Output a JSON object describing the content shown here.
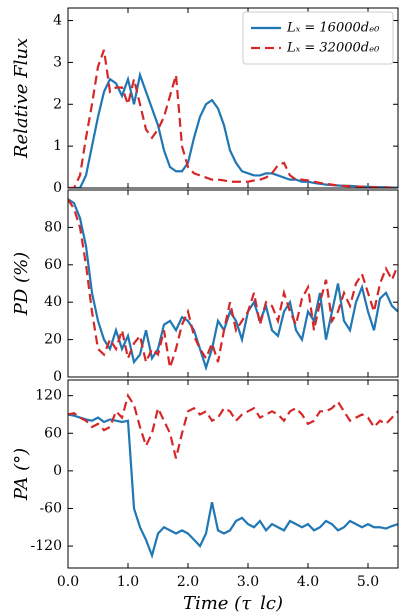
{
  "chart_data": [
    {
      "type": "line",
      "ylabel": "Relative Flux",
      "xlim": [
        0,
        5.5
      ],
      "xticks": [
        0,
        1,
        2,
        3,
        4,
        5
      ],
      "ylim": [
        0,
        4.3
      ],
      "yticks": [
        0,
        1,
        2,
        3,
        4
      ],
      "legend": "upper right",
      "x": [
        0,
        0.1,
        0.2,
        0.3,
        0.4,
        0.5,
        0.6,
        0.7,
        0.8,
        0.9,
        1.0,
        1.1,
        1.2,
        1.3,
        1.4,
        1.5,
        1.6,
        1.7,
        1.8,
        1.9,
        2.0,
        2.1,
        2.2,
        2.3,
        2.4,
        2.5,
        2.6,
        2.7,
        2.8,
        2.9,
        3.0,
        3.1,
        3.2,
        3.3,
        3.4,
        3.5,
        3.6,
        3.7,
        3.8,
        3.9,
        4.0,
        4.1,
        4.2,
        4.3,
        4.4,
        4.5,
        4.6,
        4.7,
        4.8,
        4.9,
        5.0,
        5.1,
        5.2,
        5.3,
        5.4,
        5.5
      ],
      "series": [
        {
          "name": "Lₓ = 16000dₑ₀",
          "color": "#1f77b4",
          "linestyle": "solid",
          "values": [
            0,
            0,
            0,
            0.3,
            1.0,
            1.7,
            2.3,
            2.6,
            2.5,
            2.2,
            2.6,
            2.0,
            2.7,
            2.3,
            1.9,
            1.5,
            0.9,
            0.5,
            0.4,
            0.4,
            0.6,
            1.2,
            1.7,
            2.0,
            2.1,
            1.9,
            1.5,
            0.9,
            0.6,
            0.4,
            0.35,
            0.3,
            0.3,
            0.35,
            0.35,
            0.3,
            0.25,
            0.2,
            0.2,
            0.15,
            0.15,
            0.12,
            0.1,
            0.08,
            0.07,
            0.06,
            0.05,
            0.05,
            0.04,
            0.03,
            0.03,
            0.02,
            0.02,
            0.02,
            0.01,
            0.01
          ]
        },
        {
          "name": "Lₓ = 32000dₑ₀",
          "color": "#d62728",
          "linestyle": "dashed",
          "values": [
            0,
            0,
            0.3,
            1.2,
            2.0,
            2.9,
            3.3,
            2.3,
            2.4,
            2.4,
            2.0,
            2.6,
            2.0,
            1.4,
            1.2,
            1.4,
            1.7,
            2.2,
            2.7,
            1.0,
            0.5,
            0.35,
            0.3,
            0.25,
            0.2,
            0.2,
            0.18,
            0.15,
            0.15,
            0.15,
            0.15,
            0.18,
            0.2,
            0.25,
            0.35,
            0.55,
            0.6,
            0.3,
            0.2,
            0.2,
            0.18,
            0.15,
            0.12,
            0.1,
            0.08,
            0.06,
            0.05,
            0.04,
            0.03,
            0.03,
            0.02,
            0.02,
            0.01,
            0.01,
            0.01,
            0.01
          ]
        }
      ]
    },
    {
      "type": "line",
      "ylabel": "PD (%)",
      "xlim": [
        0,
        5.5
      ],
      "xticks": [
        0,
        1,
        2,
        3,
        4,
        5
      ],
      "ylim": [
        0,
        100
      ],
      "yticks": [
        0,
        20,
        40,
        60,
        80
      ],
      "x": [
        0,
        0.1,
        0.2,
        0.3,
        0.4,
        0.5,
        0.6,
        0.7,
        0.8,
        0.9,
        1.0,
        1.1,
        1.2,
        1.3,
        1.4,
        1.5,
        1.6,
        1.7,
        1.8,
        1.9,
        2.0,
        2.1,
        2.2,
        2.3,
        2.4,
        2.5,
        2.6,
        2.7,
        2.8,
        2.9,
        3.0,
        3.1,
        3.2,
        3.3,
        3.4,
        3.5,
        3.6,
        3.7,
        3.8,
        3.9,
        4.0,
        4.1,
        4.2,
        4.3,
        4.4,
        4.5,
        4.6,
        4.7,
        4.8,
        4.9,
        5.0,
        5.1,
        5.2,
        5.3,
        5.4,
        5.5
      ],
      "series": [
        {
          "color": "#1f77b4",
          "linestyle": "solid",
          "values": [
            95,
            93,
            85,
            70,
            45,
            30,
            20,
            15,
            25,
            15,
            22,
            8,
            12,
            25,
            10,
            15,
            28,
            30,
            25,
            32,
            30,
            25,
            15,
            5,
            15,
            30,
            25,
            35,
            30,
            20,
            35,
            40,
            30,
            38,
            25,
            22,
            35,
            40,
            25,
            20,
            35,
            30,
            45,
            20,
            35,
            50,
            30,
            25,
            40,
            48,
            35,
            25,
            42,
            45,
            38,
            35
          ]
        },
        {
          "color": "#d62728",
          "linestyle": "dashed",
          "values": [
            95,
            90,
            80,
            60,
            35,
            15,
            12,
            20,
            15,
            25,
            10,
            18,
            22,
            8,
            15,
            12,
            25,
            5,
            15,
            28,
            35,
            22,
            15,
            10,
            18,
            8,
            25,
            40,
            25,
            30,
            35,
            45,
            28,
            40,
            38,
            30,
            45,
            35,
            28,
            42,
            48,
            25,
            40,
            52,
            30,
            35,
            45,
            38,
            50,
            55,
            45,
            35,
            50,
            58,
            52,
            60
          ]
        }
      ]
    },
    {
      "type": "line",
      "ylabel": "PA (°)",
      "xlabel": "Time (τ_lc)",
      "xlim": [
        0,
        5.5
      ],
      "xticks": [
        {
          "value": 0,
          "label": "0.0"
        },
        {
          "value": 1,
          "label": "1.0"
        },
        {
          "value": 2,
          "label": "2.0"
        },
        {
          "value": 3,
          "label": "3.0"
        },
        {
          "value": 4,
          "label": "4.0"
        },
        {
          "value": 5,
          "label": "5.0"
        }
      ],
      "ylim": [
        -155,
        145
      ],
      "yticks": [
        -120,
        -60,
        0,
        60,
        120
      ],
      "x": [
        0,
        0.1,
        0.2,
        0.3,
        0.4,
        0.5,
        0.6,
        0.7,
        0.8,
        0.9,
        1.0,
        1.1,
        1.2,
        1.3,
        1.4,
        1.5,
        1.6,
        1.7,
        1.8,
        1.9,
        2.0,
        2.1,
        2.2,
        2.3,
        2.4,
        2.5,
        2.6,
        2.7,
        2.8,
        2.9,
        3.0,
        3.1,
        3.2,
        3.3,
        3.4,
        3.5,
        3.6,
        3.7,
        3.8,
        3.9,
        4.0,
        4.1,
        4.2,
        4.3,
        4.4,
        4.5,
        4.6,
        4.7,
        4.8,
        4.9,
        5.0,
        5.1,
        5.2,
        5.3,
        5.4,
        5.5
      ],
      "series": [
        {
          "color": "#1f77b4",
          "linestyle": "solid",
          "values": [
            90,
            88,
            85,
            82,
            80,
            85,
            78,
            82,
            80,
            78,
            80,
            -60,
            -90,
            -110,
            -135,
            -100,
            -90,
            -95,
            -100,
            -95,
            -100,
            -110,
            -120,
            -100,
            -50,
            -95,
            -100,
            -95,
            -80,
            -75,
            -85,
            -90,
            -80,
            -95,
            -85,
            -90,
            -95,
            -80,
            -85,
            -90,
            -85,
            -95,
            -90,
            -80,
            -85,
            -95,
            -90,
            -80,
            -85,
            -90,
            -85,
            -90,
            -90,
            -92,
            -88,
            -85
          ]
        },
        {
          "color": "#d62728",
          "linestyle": "dashed",
          "values": [
            90,
            92,
            85,
            80,
            70,
            75,
            65,
            70,
            95,
            85,
            120,
            105,
            70,
            40,
            60,
            100,
            80,
            60,
            20,
            60,
            95,
            100,
            90,
            95,
            80,
            85,
            100,
            95,
            80,
            90,
            95,
            100,
            85,
            90,
            95,
            90,
            80,
            95,
            100,
            90,
            75,
            80,
            95,
            95,
            100,
            110,
            95,
            80,
            85,
            90,
            85,
            70,
            80,
            75,
            85,
            95
          ]
        }
      ]
    }
  ]
}
